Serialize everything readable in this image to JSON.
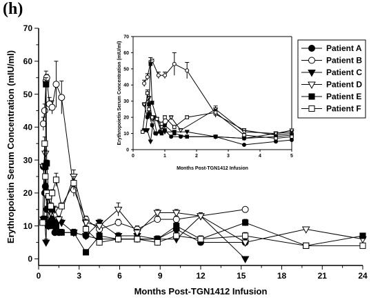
{
  "panel_label": "(h)",
  "chart_data": [
    {
      "type": "line",
      "xlabel": "Months Post-TGN1412 Infusion",
      "ylabel": "Erythropoietin Serum Concentration (mIU/ml)",
      "xlim": [
        0,
        24
      ],
      "ylim": [
        -2,
        70
      ],
      "xticks": [
        0,
        3,
        6,
        9,
        12,
        15,
        18,
        21,
        24
      ],
      "yticks": [
        0,
        10,
        20,
        30,
        40,
        50,
        60,
        70
      ],
      "legend_position": "top-right",
      "grid": false,
      "series": [
        {
          "name": "Patient A",
          "marker": "circle-filled",
          "x": [
            0.35,
            0.45,
            0.5,
            0.6,
            0.7,
            0.85,
            1.0,
            1.2,
            1.5,
            2.6,
            3.5,
            4.5,
            5.9,
            7.3,
            8.8,
            10.2,
            12.0,
            15.3
          ],
          "y": [
            28,
            20,
            22,
            15,
            10,
            11,
            12,
            8,
            8,
            8,
            7,
            6,
            6,
            6,
            6,
            9,
            5,
            5
          ],
          "err": [
            1,
            1,
            1,
            1,
            1,
            1,
            1,
            1,
            1,
            1,
            1,
            1,
            1,
            1,
            1,
            1,
            1,
            1
          ]
        },
        {
          "name": "Patient B",
          "marker": "circle-open",
          "x": [
            0.35,
            0.45,
            0.55,
            0.6,
            0.8,
            1.0,
            1.3,
            1.7,
            2.6,
            3.5,
            4.5,
            5.9,
            7.3,
            8.8,
            10.2,
            15.3
          ],
          "y": [
            41,
            45,
            54,
            55,
            47,
            46,
            53,
            49,
            21,
            12,
            9,
            11,
            9,
            12,
            12,
            15
          ],
          "err": [
            2,
            2,
            3,
            1,
            2,
            2,
            7,
            5,
            2,
            1,
            1,
            1,
            1,
            1,
            1,
            0
          ]
        },
        {
          "name": "Patient C",
          "marker": "triangle-down-filled",
          "x": [
            0.35,
            0.45,
            0.55,
            0.65,
            0.75,
            0.9,
            1.0,
            1.3,
            1.7,
            2.6,
            3.5,
            4.5,
            5.9,
            7.3,
            8.8,
            10.2,
            12.0,
            15.3
          ],
          "y": [
            12,
            12,
            5,
            20,
            10,
            14,
            11,
            11,
            11,
            8,
            7,
            11,
            7,
            7,
            6,
            6,
            13,
            0
          ],
          "err": [
            1,
            1,
            1,
            1,
            1,
            1,
            1,
            1,
            1,
            1,
            1,
            1,
            1,
            1,
            1,
            1,
            1,
            0
          ]
        },
        {
          "name": "Patient D",
          "marker": "triangle-down-open",
          "x": [
            0.35,
            0.5,
            0.6,
            0.75,
            0.9,
            1.0,
            1.2,
            1.5,
            2.6,
            3.5,
            4.5,
            5.9,
            7.3,
            8.8,
            10.2,
            12.0,
            15.3,
            19.8,
            24.0
          ],
          "y": [
            28,
            32,
            19,
            19,
            14,
            15,
            15,
            12,
            25,
            11,
            10,
            15,
            8,
            14,
            14,
            13,
            5,
            9,
            6
          ],
          "err": [
            1,
            1,
            1,
            1,
            1,
            1,
            1,
            1,
            2,
            1,
            1,
            2,
            1,
            1,
            1,
            1,
            0,
            0,
            0
          ]
        },
        {
          "name": "Patient E",
          "marker": "square-filled",
          "x": [
            0.4,
            0.5,
            0.55,
            0.6,
            0.75,
            0.9,
            1.0,
            1.3,
            1.7,
            2.6,
            3.5,
            4.5,
            5.9,
            7.3,
            8.8,
            10.2,
            12.0,
            15.3,
            19.8,
            24.0
          ],
          "y": [
            12,
            28,
            53,
            29,
            19,
            10,
            15,
            10,
            8,
            8,
            2,
            7,
            6,
            6,
            6,
            10,
            6,
            11,
            4,
            7
          ],
          "err": [
            1,
            1,
            2,
            1,
            1,
            1,
            1,
            1,
            1,
            1,
            0,
            1,
            1,
            1,
            1,
            1,
            1,
            1,
            0,
            0
          ]
        },
        {
          "name": "Patient F",
          "marker": "square-open",
          "x": [
            0.3,
            0.45,
            0.5,
            0.6,
            0.75,
            0.9,
            1.0,
            1.3,
            1.7,
            2.6,
            3.5,
            4.5,
            5.9,
            7.3,
            8.8,
            10.2,
            12.0,
            15.3,
            19.8,
            24.0
          ],
          "y": [
            11,
            35,
            25,
            20,
            19,
            16,
            20,
            24,
            16,
            23,
            9,
            5,
            6,
            6,
            5,
            7,
            6,
            7,
            4,
            4
          ],
          "err": [
            1,
            2,
            2,
            1,
            1,
            1,
            1,
            2,
            1,
            2,
            1,
            1,
            1,
            1,
            1,
            1,
            1,
            1,
            0,
            0
          ]
        }
      ]
    },
    {
      "type": "line",
      "xlabel": "Months Post-TGN1412 Infusion",
      "ylabel": "Erythropoietin Serum Concentration (mIU/ml)",
      "xlim": [
        0,
        5
      ],
      "ylim": [
        0,
        70
      ],
      "xticks": [
        0,
        1,
        2,
        3,
        4,
        5
      ],
      "yticks": [
        0,
        10,
        20,
        30,
        40,
        50,
        60,
        70
      ],
      "series": [
        {
          "name": "Patient A",
          "marker": "circle-filled",
          "x": [
            0.35,
            0.45,
            0.5,
            0.6,
            0.7,
            0.85,
            1.0,
            1.2,
            1.5,
            2.6,
            3.5,
            4.5,
            5.0
          ],
          "y": [
            28,
            20,
            22,
            15,
            10,
            11,
            12,
            8,
            8,
            8,
            3,
            5,
            6
          ],
          "err": [
            1,
            1,
            1,
            1,
            1,
            1,
            1,
            1,
            1,
            1,
            0,
            0,
            0
          ]
        },
        {
          "name": "Patient B",
          "marker": "circle-open",
          "x": [
            0.35,
            0.45,
            0.55,
            0.6,
            0.8,
            1.0,
            1.3,
            1.7,
            2.6,
            3.5,
            4.5,
            5.0
          ],
          "y": [
            41,
            45,
            54,
            55,
            46,
            46,
            53,
            49,
            22,
            12,
            9,
            10
          ],
          "err": [
            2,
            2,
            3,
            1,
            2,
            2,
            7,
            5,
            2,
            1,
            1,
            0
          ]
        },
        {
          "name": "Patient C",
          "marker": "triangle-down-filled",
          "x": [
            0.35,
            0.45,
            0.55,
            0.65,
            0.75,
            0.9,
            1.0,
            1.3,
            1.7,
            2.6,
            3.5,
            4.5,
            5.0
          ],
          "y": [
            12,
            12,
            5,
            20,
            10,
            14,
            11,
            11,
            11,
            8,
            7,
            10,
            11
          ],
          "err": [
            1,
            1,
            1,
            1,
            1,
            1,
            1,
            1,
            1,
            1,
            1,
            1,
            0
          ]
        },
        {
          "name": "Patient D",
          "marker": "triangle-down-open",
          "x": [
            0.35,
            0.5,
            0.6,
            0.75,
            0.9,
            1.0,
            1.2,
            1.5,
            2.6,
            3.5,
            4.5,
            5.0
          ],
          "y": [
            28,
            32,
            19,
            19,
            14,
            15,
            20,
            12,
            25,
            11,
            10,
            12
          ],
          "err": [
            1,
            1,
            1,
            1,
            1,
            1,
            1,
            1,
            2,
            1,
            1,
            0
          ]
        },
        {
          "name": "Patient E",
          "marker": "square-filled",
          "x": [
            0.4,
            0.5,
            0.55,
            0.6,
            0.75,
            0.9,
            1.0,
            1.3,
            1.7,
            2.6,
            3.5,
            4.5,
            5.0
          ],
          "y": [
            12,
            28,
            53,
            29,
            19,
            10,
            15,
            10,
            8,
            8,
            7,
            8,
            9
          ],
          "err": [
            1,
            1,
            2,
            1,
            1,
            1,
            1,
            1,
            1,
            1,
            0,
            0,
            0
          ]
        },
        {
          "name": "Patient F",
          "marker": "square-open",
          "x": [
            0.3,
            0.45,
            0.5,
            0.6,
            0.75,
            0.9,
            1.0,
            1.3,
            1.7,
            2.6,
            3.5,
            4.5,
            5.0
          ],
          "y": [
            11,
            35,
            25,
            20,
            19,
            16,
            20,
            14,
            20,
            23,
            9,
            7,
            8
          ],
          "err": [
            1,
            2,
            2,
            1,
            1,
            1,
            1,
            1,
            1,
            2,
            1,
            0,
            0
          ]
        }
      ]
    }
  ]
}
